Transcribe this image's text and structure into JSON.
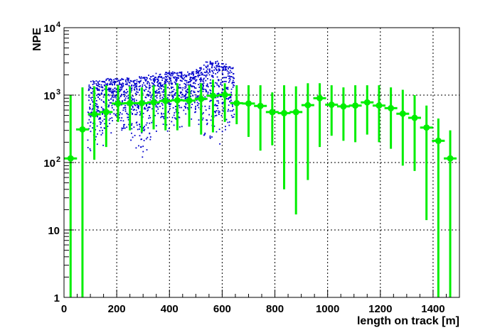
{
  "chart_data": {
    "type": "scatter",
    "title": "",
    "xlabel": "length on track [m]",
    "ylabel": "NPE",
    "xlim": [
      0,
      1500
    ],
    "ylim": [
      1,
      10000
    ],
    "y_scale": "log",
    "grid": true,
    "x_ticks": [
      "0",
      "200",
      "400",
      "600",
      "800",
      "1000",
      "1200",
      "1400"
    ],
    "y_ticks": [
      {
        "label": "1",
        "value": 1
      },
      {
        "label": "10",
        "value": 10
      },
      {
        "label": "10",
        "sup": "2",
        "value": 100
      },
      {
        "label": "10",
        "sup": "3",
        "value": 1000
      },
      {
        "label": "10",
        "sup": "4",
        "value": 10000
      }
    ],
    "colors": {
      "scatter": "#0000cc",
      "profile": "#00ee00",
      "grid": "#000000",
      "axes": "#000000"
    },
    "profile": {
      "x": [
        25,
        70,
        115,
        160,
        205,
        250,
        295,
        340,
        385,
        430,
        475,
        520,
        565,
        610,
        655,
        700,
        745,
        790,
        835,
        880,
        925,
        970,
        1015,
        1060,
        1105,
        1150,
        1195,
        1240,
        1285,
        1330,
        1375,
        1420,
        1465
      ],
      "y": [
        115,
        310,
        520,
        560,
        750,
        760,
        760,
        780,
        820,
        840,
        830,
        880,
        980,
        1010,
        760,
        750,
        690,
        560,
        540,
        560,
        710,
        900,
        720,
        680,
        700,
        780,
        700,
        640,
        530,
        460,
        330,
        210,
        115
      ],
      "ylow": [
        1,
        1,
        110,
        170,
        400,
        300,
        280,
        310,
        300,
        300,
        340,
        260,
        280,
        400,
        370,
        240,
        150,
        180,
        40,
        17,
        55,
        170,
        250,
        210,
        200,
        260,
        200,
        160,
        90,
        75,
        14,
        1,
        1
      ],
      "yhigh": [
        1000,
        1300,
        1350,
        1400,
        1400,
        1350,
        1300,
        1400,
        1450,
        1500,
        1400,
        1500,
        1700,
        1500,
        1400,
        1400,
        1400,
        1100,
        1400,
        1350,
        1500,
        1500,
        1400,
        1300,
        1400,
        1400,
        1400,
        1300,
        1200,
        1000,
        700,
        450,
        300
      ]
    },
    "scatter_model": {
      "envelope_x": [
        0,
        50,
        100,
        150,
        200,
        250,
        300,
        350,
        400,
        450,
        500,
        550,
        600,
        650,
        700,
        750,
        800,
        850,
        900,
        950,
        1000,
        1050,
        1100,
        1150,
        1200,
        1250,
        1300,
        1350,
        1400,
        1450,
        1500
      ],
      "envelope_lower": [
        1,
        1,
        110,
        170,
        300,
        200,
        100,
        200,
        250,
        300,
        340,
        150,
        140,
        300,
        200,
        100,
        50,
        20,
        15,
        55,
        150,
        200,
        150,
        200,
        150,
        100,
        60,
        20,
        5,
        1,
        1
      ],
      "envelope_upper": [
        1300,
        1500,
        1600,
        1800,
        1800,
        1800,
        1900,
        2100,
        2200,
        2200,
        2300,
        3300,
        3100,
        2400,
        2000,
        2100,
        1800,
        1900,
        2300,
        2600,
        2400,
        2100,
        1900,
        1900,
        1800,
        1700,
        1700,
        1600,
        1400,
        900,
        500
      ],
      "points_per_column": 32
    }
  }
}
